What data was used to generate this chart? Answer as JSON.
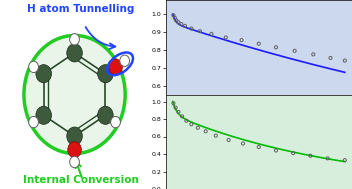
{
  "top_plot": {
    "bg_color": "#ccd8ee",
    "line_color": "#1a1aff",
    "scatter_color": "#606060",
    "xlim": [
      -50,
      1250
    ],
    "ylim": [
      0.55,
      1.08
    ],
    "decay_amp1": 0.05,
    "decay_tau1": 20,
    "decay_amp2": 0.95,
    "decay_tau2": 3500,
    "x_scatter": [
      5,
      15,
      25,
      40,
      60,
      85,
      130,
      190,
      270,
      370,
      480,
      600,
      720,
      850,
      980,
      1100,
      1200
    ],
    "y_scatter": [
      0.995,
      0.98,
      0.965,
      0.955,
      0.945,
      0.935,
      0.92,
      0.905,
      0.89,
      0.87,
      0.855,
      0.835,
      0.815,
      0.795,
      0.775,
      0.755,
      0.74
    ],
    "tick_positions": [
      0,
      200,
      400,
      600,
      800,
      1000,
      1200
    ],
    "ytick_positions": [
      0.6,
      0.7,
      0.8,
      0.9,
      1.0
    ]
  },
  "bottom_plot": {
    "bg_color": "#d8eedd",
    "line_color": "#00bb00",
    "scatter_color": "#606060",
    "xlim": [
      -50,
      1250
    ],
    "ylim": [
      0.0,
      1.08
    ],
    "decay_amp1": 0.15,
    "decay_tau1": 30,
    "decay_amp2": 0.85,
    "decay_tau2": 1200,
    "x_scatter": [
      5,
      20,
      40,
      65,
      95,
      130,
      175,
      230,
      300,
      390,
      490,
      600,
      720,
      840,
      960,
      1080,
      1200
    ],
    "y_scatter": [
      0.98,
      0.93,
      0.88,
      0.83,
      0.78,
      0.74,
      0.7,
      0.66,
      0.61,
      0.56,
      0.52,
      0.48,
      0.44,
      0.41,
      0.38,
      0.35,
      0.33
    ],
    "tick_positions": [
      0,
      200,
      400,
      600,
      800,
      1000,
      1200
    ],
    "ytick_positions": [
      0.0,
      0.2,
      0.4,
      0.6,
      0.8,
      1.0
    ]
  }
}
